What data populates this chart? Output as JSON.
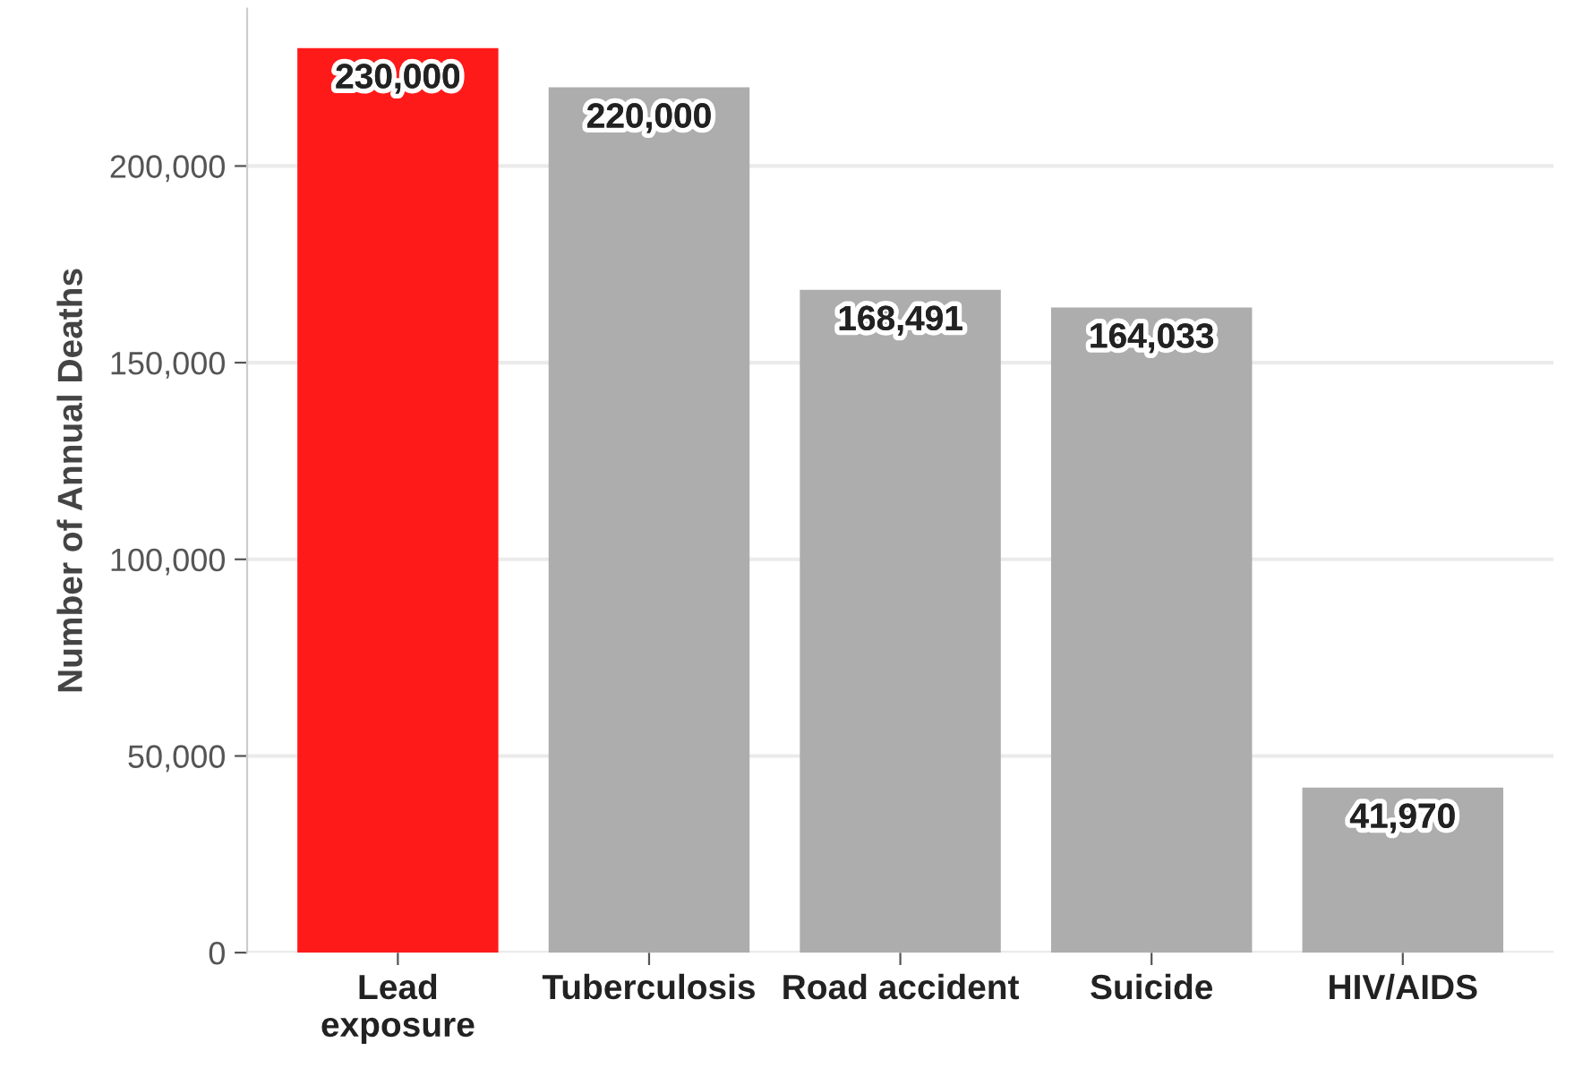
{
  "chart_data": {
    "type": "bar",
    "ylabel": "Number of Annual Deaths",
    "categories": [
      "Lead\nexposure",
      "Tuberculosis",
      "Road accident",
      "Suicide",
      "HIV/AIDS"
    ],
    "values": [
      230000,
      220000,
      168491,
      164033,
      41970
    ],
    "colors": [
      "#ff1a1a",
      "#adadad",
      "#adadad",
      "#adadad",
      "#adadad"
    ],
    "value_labels": [
      "230,000",
      "220,000",
      "168,491",
      "164,033",
      "41,970"
    ],
    "ylim": [
      0,
      240000
    ],
    "yticks": [
      0,
      {
        "value": 50000,
        "label": "50,000"
      },
      {
        "value": 100000,
        "label": "100,000"
      },
      {
        "value": 150000,
        "label": "150,000"
      },
      {
        "value": 200000,
        "label": "200,000"
      }
    ],
    "grid": "y"
  }
}
